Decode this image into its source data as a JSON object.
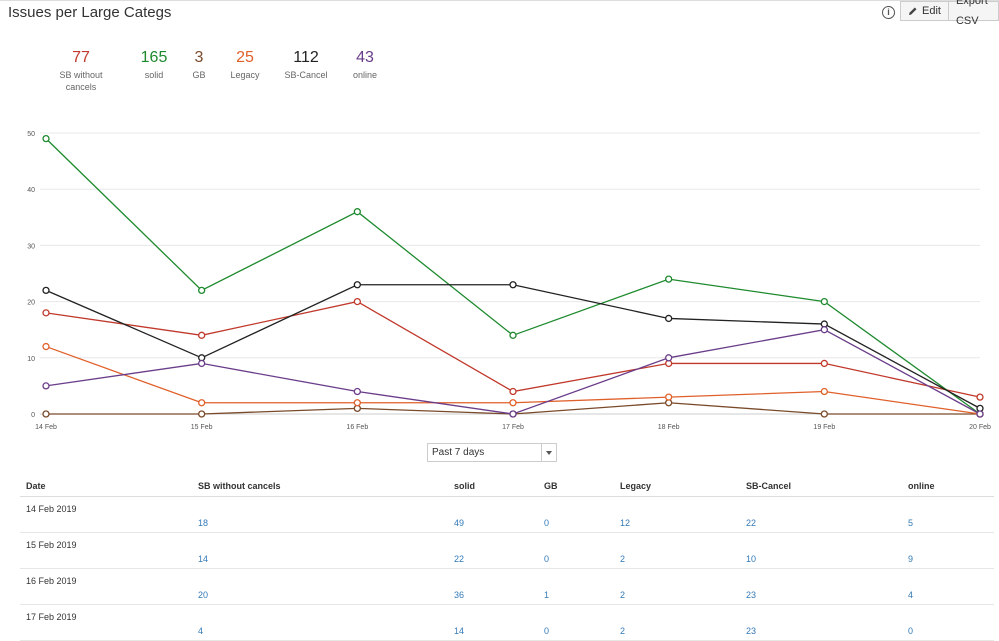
{
  "header": {
    "title": "Issues per Large Categs",
    "edit_label": "Edit",
    "export_label": "Export CSV",
    "info_icon": "info-icon"
  },
  "totals": [
    {
      "value": "77",
      "label": "SB without cancels",
      "color": "#c0392b"
    },
    {
      "value": "165",
      "label": "solid",
      "color": "#1e8a2e"
    },
    {
      "value": "3",
      "label": "GB",
      "color": "#7a4a2a"
    },
    {
      "value": "25",
      "label": "Legacy",
      "color": "#e0602a"
    },
    {
      "value": "112",
      "label": "SB-Cancel",
      "color": "#222222"
    },
    {
      "value": "43",
      "label": "online",
      "color": "#6a3d8a"
    }
  ],
  "chart_data": {
    "type": "line",
    "x": [
      "14 Feb",
      "15 Feb",
      "16 Feb",
      "17 Feb",
      "18 Feb",
      "19 Feb",
      "20 Feb"
    ],
    "ylim": [
      0,
      50
    ],
    "yticks": [
      0,
      10,
      20,
      30,
      40,
      50
    ],
    "grid": true,
    "series": [
      {
        "name": "SB without cancels",
        "color": "#c0392b",
        "values": [
          18,
          14,
          20,
          4,
          9,
          9,
          3
        ]
      },
      {
        "name": "solid",
        "color": "#1e8a2e",
        "values": [
          49,
          22,
          36,
          14,
          24,
          20,
          0
        ]
      },
      {
        "name": "GB",
        "color": "#7a4a2a",
        "values": [
          0,
          0,
          1,
          0,
          2,
          0,
          0
        ]
      },
      {
        "name": "Legacy",
        "color": "#e0602a",
        "values": [
          12,
          2,
          2,
          2,
          3,
          4,
          0
        ]
      },
      {
        "name": "SB-Cancel",
        "color": "#222222",
        "values": [
          22,
          10,
          23,
          23,
          17,
          16,
          1
        ]
      },
      {
        "name": "online",
        "color": "#6a3d8a",
        "values": [
          5,
          9,
          4,
          0,
          10,
          15,
          0
        ]
      }
    ]
  },
  "range_select": {
    "value": "Past 7 days"
  },
  "table": {
    "headers": [
      "Date",
      "SB without cancels",
      "solid",
      "GB",
      "Legacy",
      "SB-Cancel",
      "online"
    ],
    "rows": [
      [
        "14 Feb 2019",
        "18",
        "49",
        "0",
        "12",
        "22",
        "5"
      ],
      [
        "15 Feb 2019",
        "14",
        "22",
        "0",
        "2",
        "10",
        "9"
      ],
      [
        "16 Feb 2019",
        "20",
        "36",
        "1",
        "2",
        "23",
        "4"
      ],
      [
        "17 Feb 2019",
        "4",
        "14",
        "0",
        "2",
        "23",
        "0"
      ]
    ]
  }
}
